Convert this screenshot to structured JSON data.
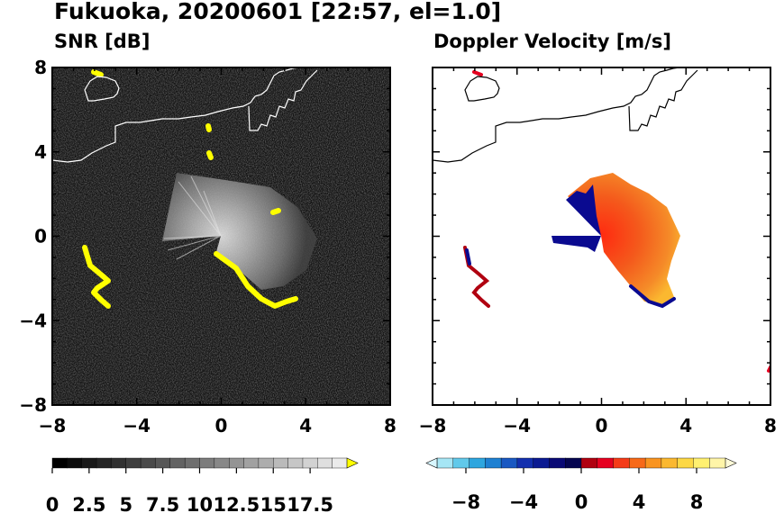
{
  "title": "Fukuoka, 20200601 [22:57, el=1.0]",
  "chart_data": [
    {
      "type": "heatmap",
      "title": "SNR [dB]",
      "xlim": [
        -8,
        8
      ],
      "ylim": [
        -8,
        8
      ],
      "x_ticks": [
        "−8",
        "−4",
        "0",
        "4",
        "8"
      ],
      "y_ticks": [
        "8",
        "4",
        "0",
        "−4",
        "−8"
      ],
      "background": "noise (black/dark grey)",
      "echo": {
        "center": [
          0,
          0
        ],
        "sector_deg": [
          -45,
          70
        ],
        "max_range": 4.0,
        "color": "grey/white"
      },
      "colorbar": {
        "labels": [
          "0",
          "2.5",
          "5",
          "7.5",
          "10",
          "12.5",
          "15",
          "17.5"
        ],
        "range": [
          0,
          20
        ],
        "extend_color": "#ffff00"
      },
      "highlight_color": "#ffff00",
      "coastline_color": "#ffffff"
    },
    {
      "type": "heatmap",
      "title": "Doppler Velocity [m/s]",
      "xlim": [
        -8,
        8
      ],
      "ylim": [
        -8,
        8
      ],
      "x_ticks": [
        "−8",
        "−4",
        "0",
        "4",
        "8"
      ],
      "y_ticks": [],
      "echo": {
        "center": [
          0,
          0
        ],
        "sector_deg": [
          -45,
          70
        ],
        "max_range": 4.0,
        "values": "0 to 6 (red–orange), -8 near west edge (blue)"
      },
      "colorbar": {
        "labels": [
          "−8",
          "−4",
          "0",
          "4",
          "8"
        ],
        "range": [
          -10,
          10
        ],
        "colors": [
          "#d8f6ff",
          "#a6e6f5",
          "#61c9ea",
          "#2ea6df",
          "#1e80d2",
          "#1958c2",
          "#132fae",
          "#0b1a92",
          "#0a0a75",
          "#060650",
          "#b00010",
          "#e60020",
          "#f53b18",
          "#f76918",
          "#f99420",
          "#fbb830",
          "#fdd845",
          "#fff070",
          "#fff5a8",
          "#fffbd8"
        ]
      },
      "coastline_color": "#000000"
    }
  ]
}
